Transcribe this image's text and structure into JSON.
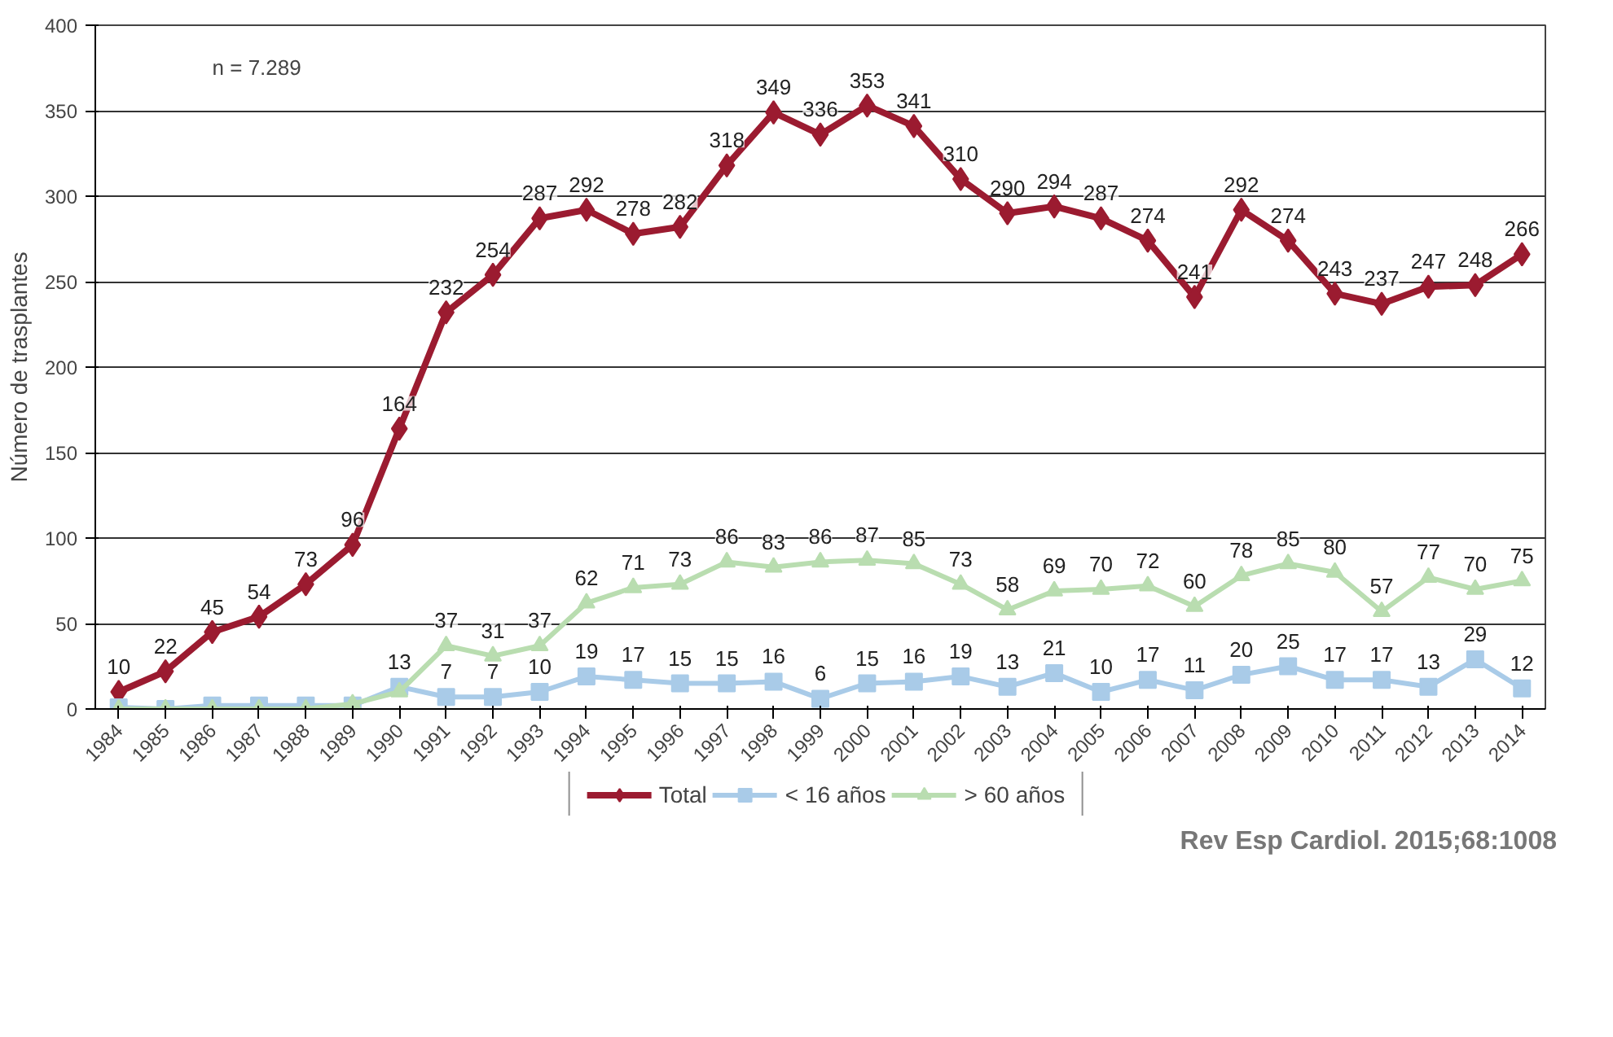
{
  "chart_data": {
    "type": "line",
    "ylabel": "Número de trasplantes",
    "annotations": [
      "n = 7.289",
      "Rev Esp Cardiol. 2015;68:1008"
    ],
    "categories": [
      "1984",
      "1985",
      "1986",
      "1987",
      "1988",
      "1989",
      "1990",
      "1991",
      "1992",
      "1993",
      "1994",
      "1995",
      "1996",
      "1997",
      "1998",
      "1999",
      "2000",
      "2001",
      "2002",
      "2003",
      "2004",
      "2005",
      "2006",
      "2007",
      "2008",
      "2009",
      "2010",
      "2011",
      "2012",
      "2013",
      "2014"
    ],
    "ylim": [
      0,
      400
    ],
    "yticks": [
      0,
      50,
      100,
      150,
      200,
      250,
      300,
      350,
      400
    ],
    "grid": "y",
    "legend": "bottom",
    "series": [
      {
        "name": "Total",
        "color": "#9b1b30",
        "marker": "diamond",
        "values": [
          10,
          22,
          45,
          54,
          73,
          96,
          164,
          232,
          254,
          287,
          292,
          278,
          282,
          318,
          349,
          336,
          353,
          341,
          310,
          290,
          294,
          287,
          274,
          241,
          292,
          274,
          243,
          237,
          247,
          248,
          266
        ],
        "value_labels": [
          "10",
          "22",
          "45",
          "54",
          "73",
          "96",
          "164",
          "232",
          "254",
          "287",
          "292",
          "278",
          "282",
          "318",
          "349",
          "336",
          "353",
          "341",
          "310",
          "290",
          "294",
          "287",
          "274",
          "241",
          "292",
          "274",
          "243",
          "237",
          "247",
          "248",
          "266"
        ]
      },
      {
        "name": "< 16 años",
        "color": "#a9cbe8",
        "marker": "square",
        "values": [
          1,
          0,
          2,
          2,
          2,
          2,
          13,
          7,
          7,
          10,
          19,
          17,
          15,
          15,
          16,
          6,
          15,
          16,
          19,
          13,
          21,
          10,
          17,
          11,
          20,
          25,
          17,
          17,
          13,
          29,
          12
        ],
        "value_labels": [
          null,
          null,
          null,
          null,
          null,
          null,
          "13",
          "7",
          "7",
          "10",
          "19",
          "17",
          "15",
          "15",
          "16",
          "6",
          "15",
          "16",
          "19",
          "13",
          "21",
          "10",
          "17",
          "11",
          "20",
          "25",
          "17",
          "17",
          "13",
          "29",
          "12"
        ]
      },
      {
        "name": "> 60 años",
        "color": "#b9ddb0",
        "marker": "triangle",
        "values": [
          0,
          0,
          0,
          0,
          0,
          3,
          10,
          37,
          31,
          37,
          62,
          71,
          73,
          86,
          83,
          86,
          87,
          85,
          73,
          58,
          69,
          70,
          72,
          60,
          78,
          85,
          80,
          57,
          77,
          70,
          75
        ],
        "value_labels": [
          null,
          null,
          null,
          null,
          null,
          null,
          null,
          "37",
          "31",
          "37",
          "62",
          "71",
          "73",
          "86",
          "83",
          "86",
          "87",
          "85",
          "73",
          "58",
          "69",
          "70",
          "72",
          "60",
          "78",
          "85",
          "80",
          "57",
          "77",
          "70",
          "75"
        ]
      }
    ]
  }
}
